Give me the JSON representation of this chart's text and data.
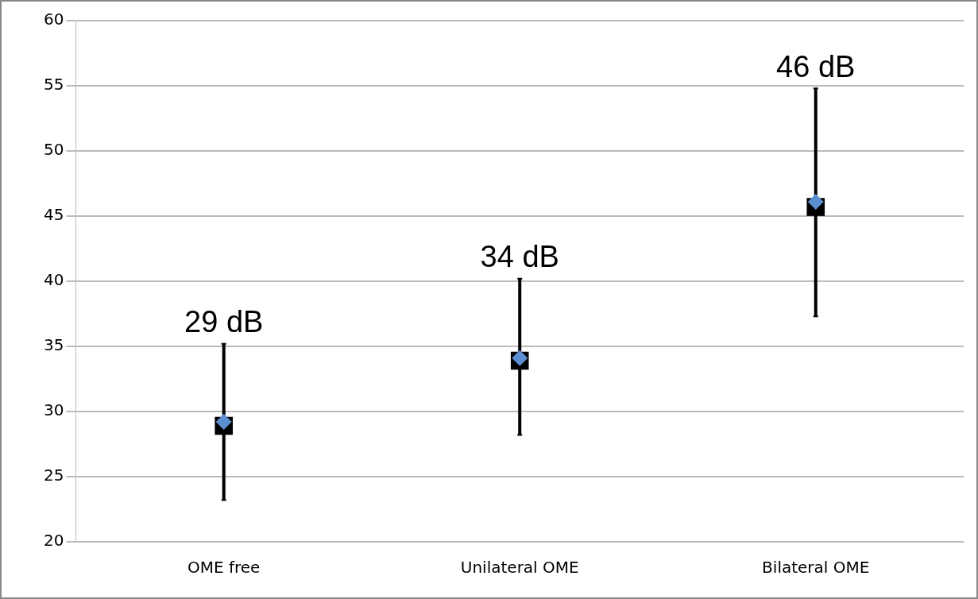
{
  "chart_data": {
    "type": "scatter",
    "categories": [
      "OME free",
      "Unilateral OME",
      "Bilateral OME"
    ],
    "series": [
      {
        "color": "#000000",
        "marker": "square",
        "values": [
          28.9,
          33.9,
          45.7
        ],
        "errors": [
          [
            23.2,
            35.2
          ],
          [
            28.2,
            40.2
          ],
          [
            37.3,
            54.8
          ]
        ]
      },
      {
        "color": "#5b8fd0",
        "marker": "diamond",
        "values": [
          29.2,
          34.1,
          46.1
        ]
      }
    ],
    "annotations": [
      {
        "text": "29 dB",
        "x": "OME free",
        "y": 35.2
      },
      {
        "text": "34 dB",
        "x": "Unilateral OME",
        "y": 40.2
      },
      {
        "text": "46 dB",
        "x": "Bilateral OME",
        "y": 54.8
      }
    ],
    "ylim": [
      20,
      60
    ],
    "yticks": [
      20,
      25,
      30,
      35,
      40,
      45,
      50,
      55,
      60
    ],
    "grid": "y",
    "legend": false
  }
}
